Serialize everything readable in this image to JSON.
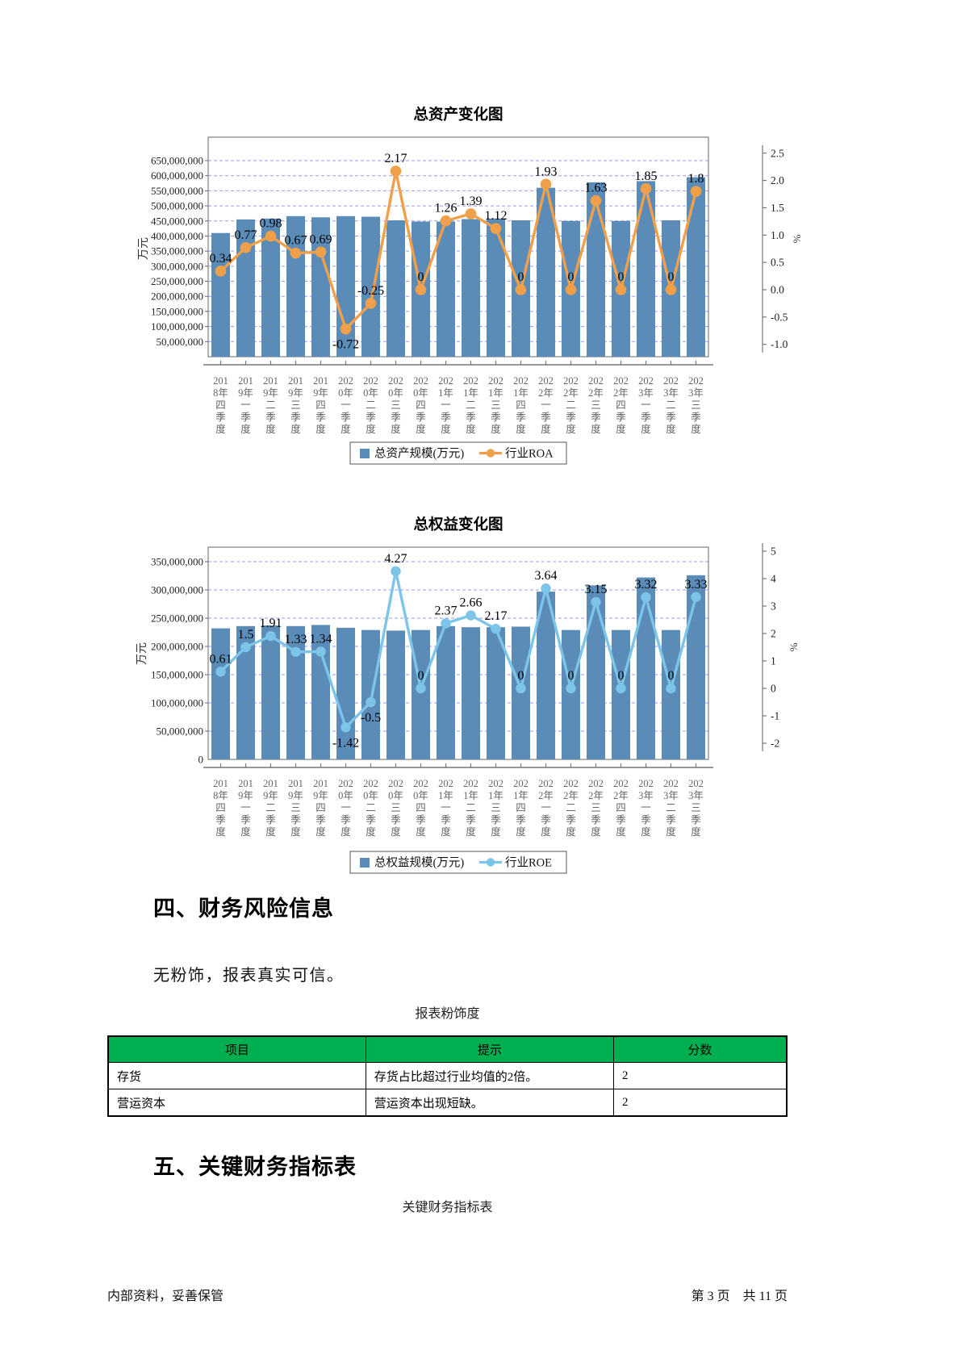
{
  "colors": {
    "bar_blue": "#5b8cb8",
    "roa_orange": "#f0a04b",
    "roe_blue": "#7cc4e8",
    "grid_line": "#8585ef",
    "table_header_green": "#00b050"
  },
  "sections": {
    "s4_heading": "四、财务风险信息",
    "s4_paragraph": "无粉饰，报表真实可信。",
    "table_caption": "报表粉饰度",
    "s5_heading": "五、关键财务指标表",
    "s5_caption": "关键财务指标表"
  },
  "risk_table": {
    "headers": [
      "项目",
      "提示",
      "分数"
    ],
    "rows": [
      [
        "存货",
        "存货占比超过行业均值的2倍。",
        "2"
      ],
      [
        "营运资本",
        "营运资本出现短缺。",
        "2"
      ]
    ]
  },
  "footer": {
    "left": "内部资料，妥善保管",
    "right": "第 3 页　共 11 页"
  },
  "chart_data": [
    {
      "type": "bar+line",
      "name": "total-assets-chart",
      "title": "总资产变化图",
      "categories": [
        "2018年四季度",
        "2019年一季度",
        "2019年二季度",
        "2019年三季度",
        "2019年四季度",
        "2020年一季度",
        "2020年二季度",
        "2020年三季度",
        "2020年四季度",
        "2021年一季度",
        "2021年二季度",
        "2021年三季度",
        "2021年四季度",
        "2022年一季度",
        "2022年二季度",
        "2022年三季度",
        "2022年四季度",
        "2023年一季度",
        "2023年二季度",
        "2023年三季度"
      ],
      "series": [
        {
          "name": "总资产规模(万元)",
          "type": "bar",
          "color": "#5b8cb8",
          "values": [
            410000000,
            455000000,
            458000000,
            466000000,
            462000000,
            466000000,
            464000000,
            452000000,
            448000000,
            448000000,
            456000000,
            458000000,
            452000000,
            560000000,
            450000000,
            578000000,
            450000000,
            582000000,
            452000000,
            595000000
          ]
        },
        {
          "name": "行业ROA",
          "type": "line",
          "color": "#f0a04b",
          "values": [
            0.34,
            0.77,
            0.98,
            0.67,
            0.69,
            -0.72,
            -0.25,
            2.17,
            0,
            1.26,
            1.39,
            1.12,
            0,
            1.93,
            0,
            1.63,
            0,
            1.85,
            0,
            1.8
          ]
        }
      ],
      "left_axis": {
        "label": "万元",
        "max": 650000000,
        "tick_step": 50000000,
        "min_tick": 50000000,
        "zero_label": false
      },
      "right_axis": {
        "label": "%",
        "max": 2.5,
        "min": -1.0,
        "step": 0.5,
        "decimals": 1
      },
      "grid": "dashed-horizontal",
      "legend_position": "bottom-center"
    },
    {
      "type": "bar+line",
      "name": "total-equity-chart",
      "title": "总权益变化图",
      "categories": [
        "2018年四季度",
        "2019年一季度",
        "2019年二季度",
        "2019年三季度",
        "2019年四季度",
        "2020年一季度",
        "2020年二季度",
        "2020年三季度",
        "2020年四季度",
        "2021年一季度",
        "2021年二季度",
        "2021年三季度",
        "2021年四季度",
        "2022年一季度",
        "2022年二季度",
        "2022年三季度",
        "2022年四季度",
        "2023年一季度",
        "2023年二季度",
        "2023年三季度"
      ],
      "series": [
        {
          "name": "总权益规模(万元)",
          "type": "bar",
          "color": "#5b8cb8",
          "values": [
            232000000,
            236000000,
            237000000,
            236000000,
            238000000,
            233000000,
            229000000,
            228000000,
            229000000,
            236000000,
            234000000,
            234000000,
            235000000,
            297000000,
            229000000,
            308000000,
            229000000,
            322000000,
            229000000,
            326000000
          ]
        },
        {
          "name": "行业ROE",
          "type": "line",
          "color": "#7cc4e8",
          "values": [
            0.61,
            1.5,
            1.91,
            1.33,
            1.34,
            -1.42,
            -0.5,
            4.27,
            0,
            2.37,
            2.66,
            2.17,
            0,
            3.64,
            0,
            3.15,
            0,
            3.32,
            0,
            3.33
          ]
        }
      ],
      "left_axis": {
        "label": "万元",
        "max": 350000000,
        "tick_step": 50000000,
        "min_tick": 50000000,
        "zero_label": true
      },
      "right_axis": {
        "label": "%",
        "max": 5,
        "min": -2,
        "step": 1,
        "decimals": 0
      },
      "grid": "dashed-horizontal",
      "legend_position": "bottom-center"
    }
  ]
}
